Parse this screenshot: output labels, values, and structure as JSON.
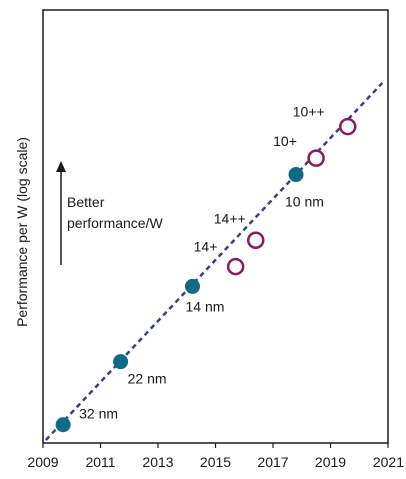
{
  "chart_data": {
    "type": "scatter",
    "ylabel": "Performance per W (log scale)",
    "y_scale": "log",
    "y_tick_labels": "none",
    "xlim": [
      2009,
      2021
    ],
    "x_ticks": [
      "2009",
      "2011",
      "2013",
      "2015",
      "2017",
      "2019",
      "2021"
    ],
    "grid": false,
    "annotation": {
      "lines": [
        "Better",
        "performance/W"
      ],
      "arrow": "up"
    },
    "series": [
      {
        "marker": "filled-circle",
        "color": "#0e6a86",
        "points": [
          {
            "x": 2009.7,
            "label": "32 nm"
          },
          {
            "x": 2011.7,
            "label": "22 nm"
          },
          {
            "x": 2014.2,
            "label": "14 nm"
          },
          {
            "x": 2017.8,
            "label": "10 nm"
          }
        ]
      },
      {
        "marker": "open-circle",
        "color": "#8a1c5e",
        "points": [
          {
            "x": 2015.7,
            "label": "14+"
          },
          {
            "x": 2016.4,
            "label": "14++"
          },
          {
            "x": 2018.5,
            "label": "10+"
          },
          {
            "x": 2019.6,
            "label": "10++"
          }
        ]
      }
    ],
    "trend_line": {
      "style": "dashed",
      "color": "#3b3c8c"
    }
  }
}
